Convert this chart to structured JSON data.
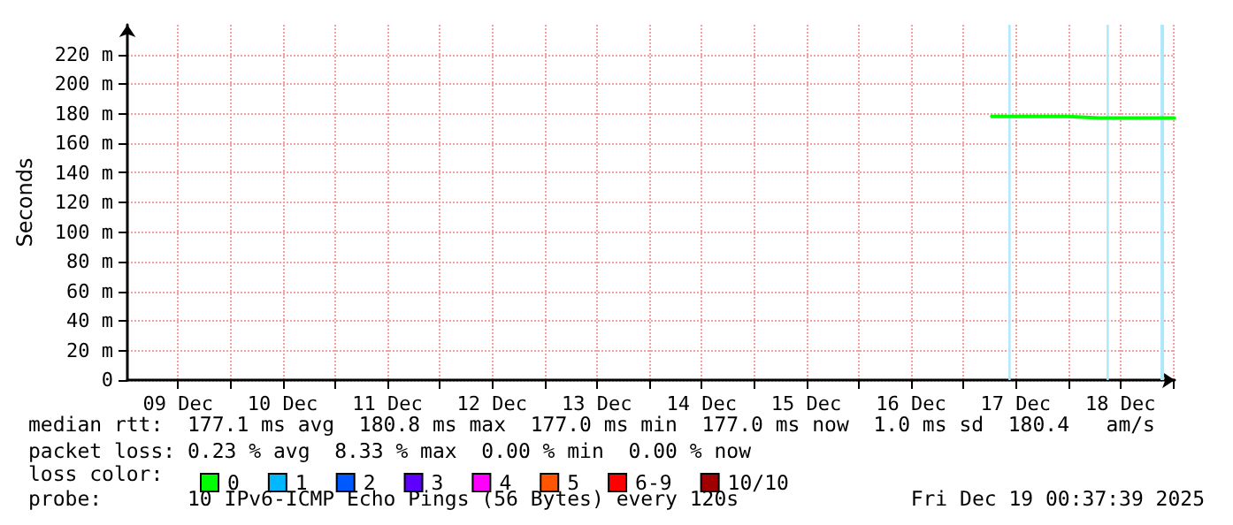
{
  "chart_data": {
    "type": "line",
    "ylabel": "Seconds",
    "x": [
      "--12-17T06:30",
      "--12-17T10:48",
      "--12-17T16:48",
      "--12-18T00:00",
      "--12-18T07:12",
      "--12-18T14:24",
      "--12-18T21:36",
      "--12-19T00:20"
    ],
    "series": [
      {
        "name": "0",
        "color": "#00ff00",
        "values": [
          178,
          178,
          178,
          178,
          177,
          177,
          177,
          177
        ]
      },
      {
        "name": "1",
        "color": "#00b8ff",
        "values": [
          null,
          null,
          null,
          null,
          null,
          null,
          null,
          null
        ]
      },
      {
        "name": "2",
        "color": "#0059ff",
        "values": [
          null,
          null,
          null,
          null,
          null,
          null,
          null,
          null
        ]
      },
      {
        "name": "3",
        "color": "#5e00ff",
        "values": [
          null,
          null,
          null,
          null,
          null,
          null,
          null,
          null
        ]
      },
      {
        "name": "4",
        "color": "#ff00ff",
        "values": [
          null,
          null,
          null,
          null,
          null,
          null,
          null,
          null
        ]
      },
      {
        "name": "5",
        "color": "#ff5500",
        "values": [
          null,
          null,
          null,
          null,
          null,
          null,
          null,
          null
        ]
      },
      {
        "name": "6-9",
        "color": "#ff0000",
        "values": [
          null,
          null,
          null,
          null,
          null,
          null,
          null,
          null
        ]
      },
      {
        "name": "10/10",
        "color": "#a10000",
        "values": [
          null,
          null,
          null,
          null,
          null,
          null,
          null,
          null
        ]
      }
    ],
    "legend_title": "loss color:",
    "legend": "bottom left",
    "xlim": [
      "--12-09T00:25",
      "--12-19T00:25"
    ],
    "xticks": [
      {
        "value": "--12-09T12:00",
        "label": "09 Dec"
      },
      {
        "value": "--12-10T00:00",
        "label": null
      },
      {
        "value": "--12-10T12:00",
        "label": "10 Dec"
      },
      {
        "value": "--12-11T00:00",
        "label": null
      },
      {
        "value": "--12-11T12:00",
        "label": "11 Dec"
      },
      {
        "value": "--12-12T00:00",
        "label": null
      },
      {
        "value": "--12-12T12:00",
        "label": "12 Dec"
      },
      {
        "value": "--12-13T00:00",
        "label": null
      },
      {
        "value": "--12-13T12:00",
        "label": "13 Dec"
      },
      {
        "value": "--12-14T00:00",
        "label": null
      },
      {
        "value": "--12-14T12:00",
        "label": "14 Dec"
      },
      {
        "value": "--12-15T00:00",
        "label": null
      },
      {
        "value": "--12-15T12:00",
        "label": "15 Dec"
      },
      {
        "value": "--12-16T00:00",
        "label": null
      },
      {
        "value": "--12-16T12:00",
        "label": "16 Dec"
      },
      {
        "value": "--12-17T00:00",
        "label": null
      },
      {
        "value": "--12-17T12:00",
        "label": "17 Dec"
      },
      {
        "value": "--12-18T00:00",
        "label": null
      },
      {
        "value": "--12-18T12:00",
        "label": "18 Dec"
      },
      {
        "value": "--12-19T00:00",
        "label": null
      }
    ],
    "ylim": [
      0,
      240
    ],
    "yticks": [
      {
        "value": 0,
        "label": "0"
      },
      {
        "value": 20,
        "label": "20 m"
      },
      {
        "value": 40,
        "label": "40 m"
      },
      {
        "value": 60,
        "label": "60 m"
      },
      {
        "value": 80,
        "label": "80 m"
      },
      {
        "value": 100,
        "label": "100 m"
      },
      {
        "value": 120,
        "label": "120 m"
      },
      {
        "value": 140,
        "label": "140 m"
      },
      {
        "value": 160,
        "label": "160 m"
      },
      {
        "value": 180,
        "label": "180 m"
      },
      {
        "value": 200,
        "label": "200 m"
      },
      {
        "value": 220,
        "label": "220 m"
      }
    ],
    "bands": [
      {
        "axis": "x",
        "from": "--12-17T10:20",
        "to": "--12-17T10:50",
        "color": "#aee8fa"
      },
      {
        "axis": "x",
        "from": "--12-18T08:50",
        "to": "--12-18T09:20",
        "color": "#aee8fa"
      },
      {
        "axis": "x",
        "from": "--12-18T21:10",
        "to": "--12-18T22:00",
        "color": "#aee8fa"
      }
    ],
    "grid": true,
    "marker": "none",
    "line_style": "solid",
    "annotations": [
      "median rtt:  177.1 ms avg  180.8 ms max  177.0 ms min  177.0 ms now  1.0 ms sd  180.4   am/s",
      "packet loss: 0.23 % avg  8.33 % max  0.00 % min  0.00 % now",
      "probe:       10 IPv6-ICMP Echo Pings (56 Bytes) every 120s",
      "Fri Dec 19 00:37:39 2025"
    ]
  }
}
